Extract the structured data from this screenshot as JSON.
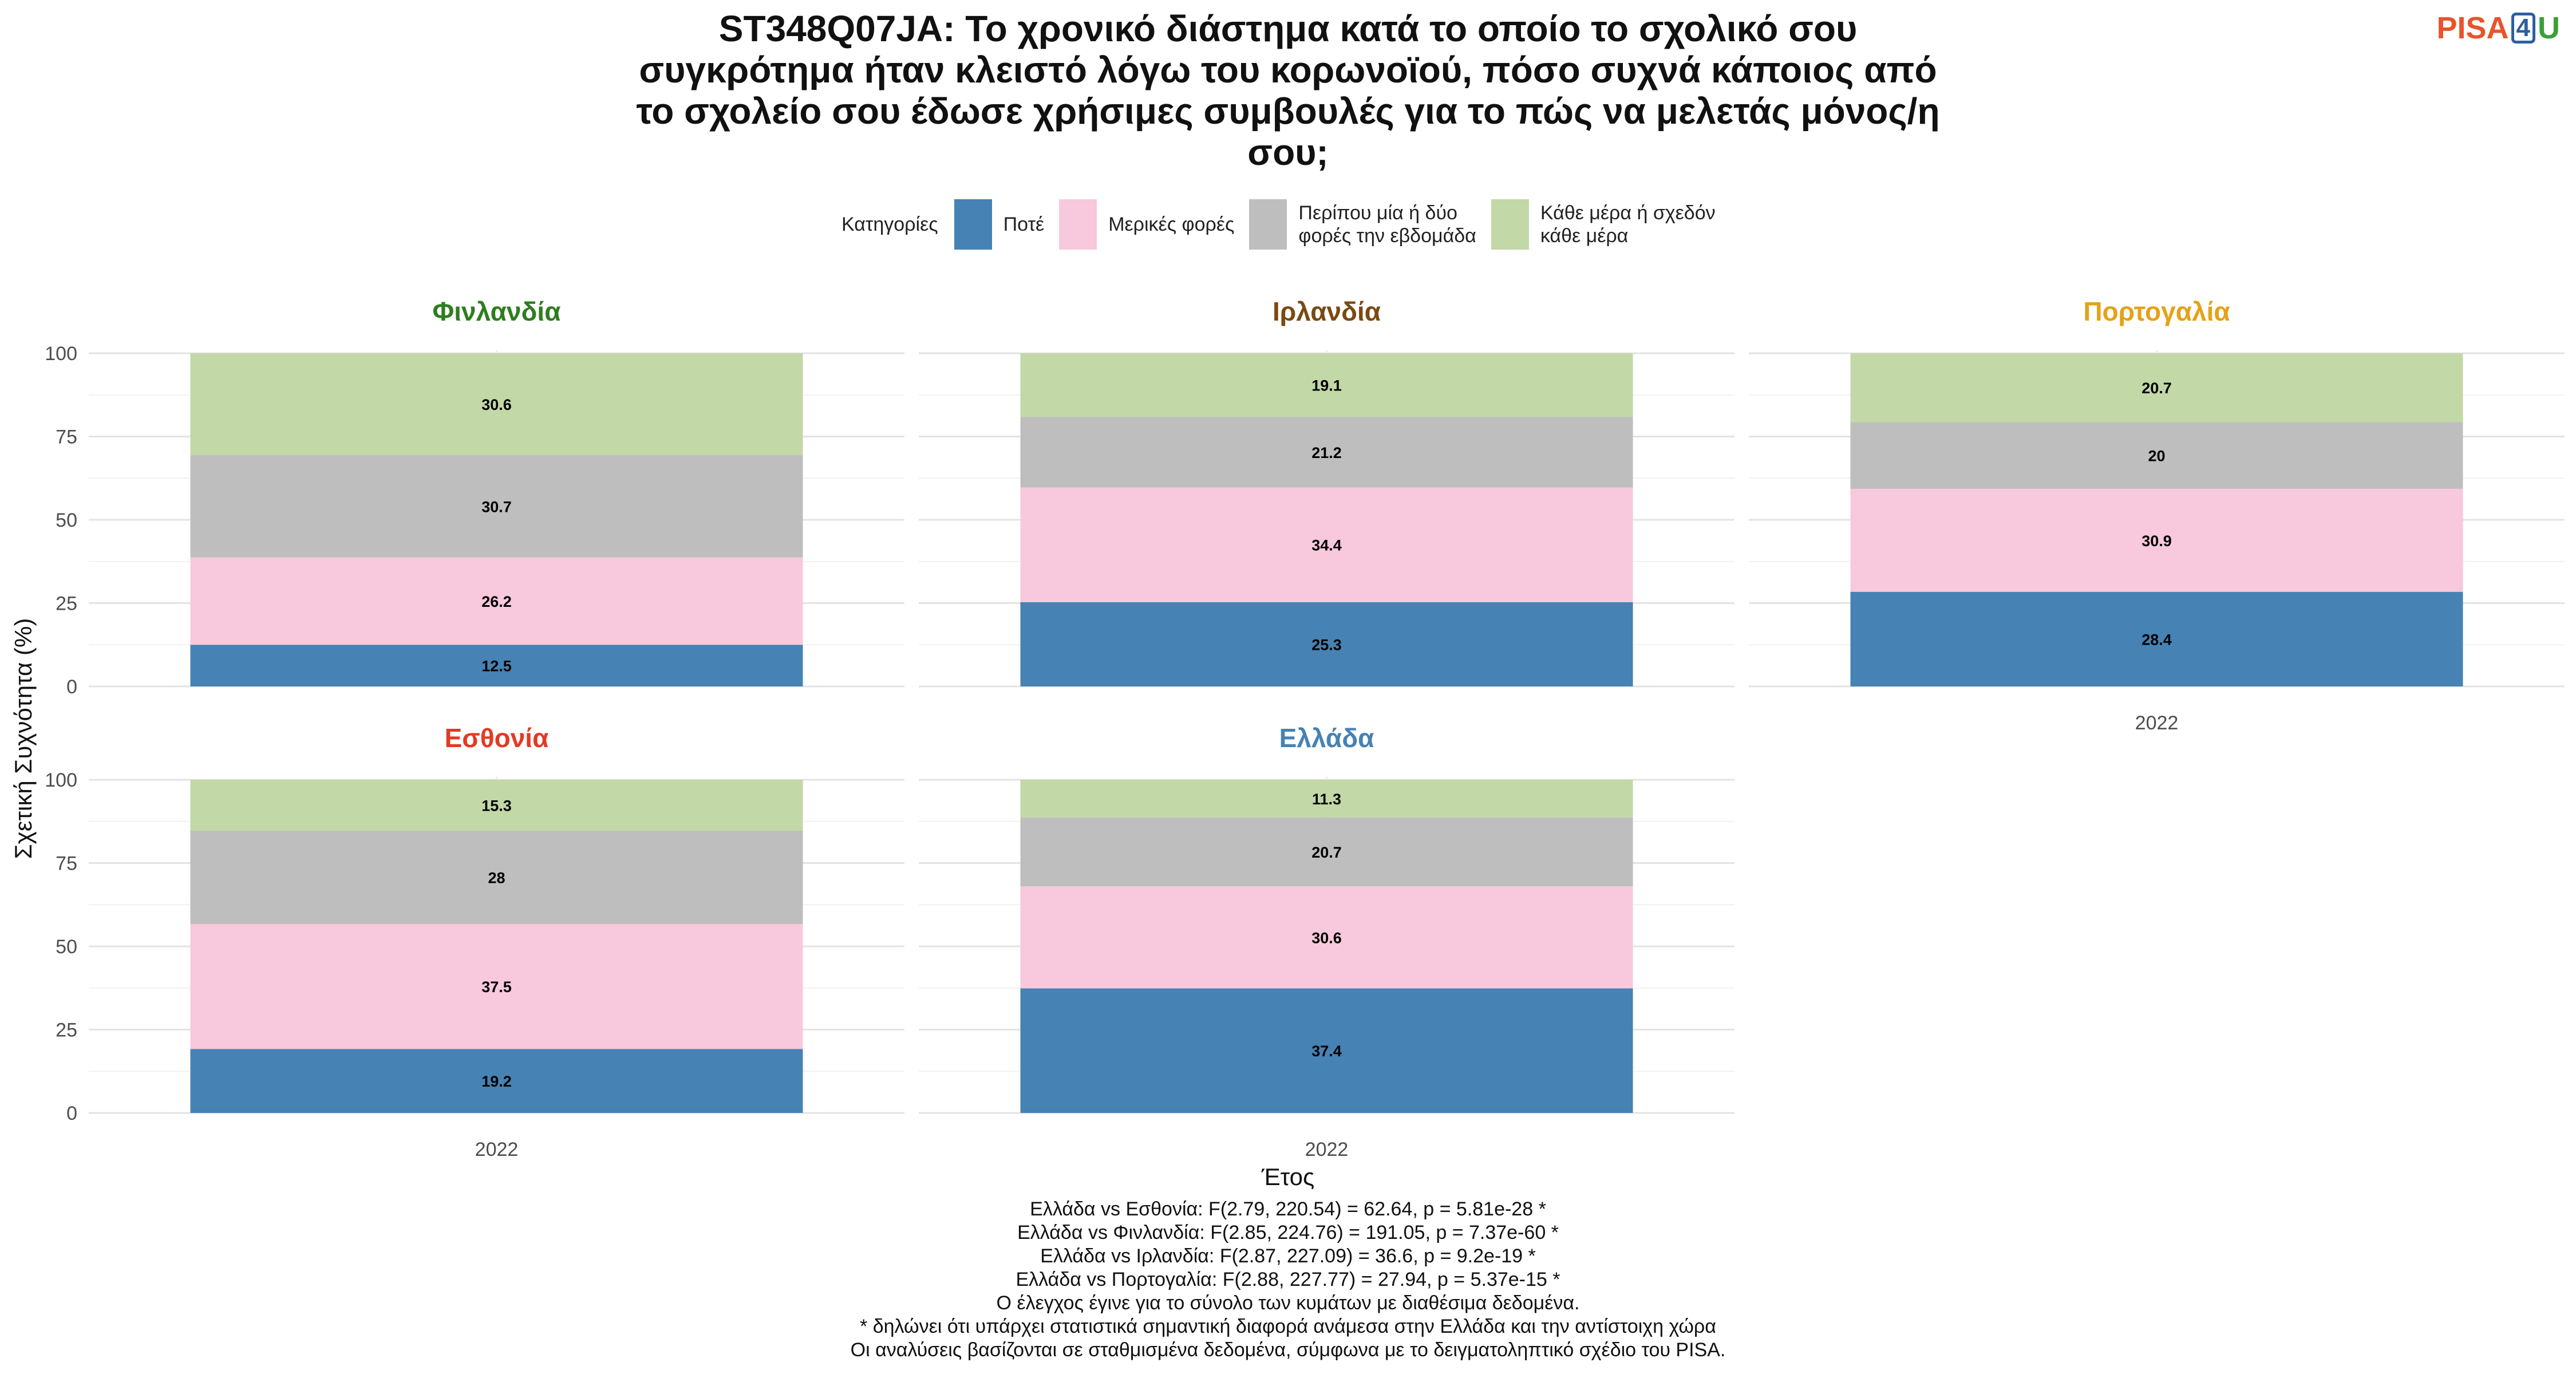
{
  "title": "ST348Q07JA: Το χρονικό διάστημα κατά το οποίο το σχολικό σου συγκρότημα ήταν κλειστό λόγω του κορωνοϊού, πόσο συχνά κάποιος από το σχολείο σου έδωσε χρήσιμες συμβουλές για το πώς να μελετάς μόνος/η σου;",
  "title_lines": [
    "ST348Q07JA: Το χρονικό διάστημα κατά το οποίο το σχολικό σου",
    "συγκρότημα ήταν κλειστό λόγω του κορωνοϊού, πόσο συχνά κάποιος από",
    "το σχολείο σου έδωσε χρήσιμες συμβουλές για το πώς να μελετάς μόνος/η",
    "σου;"
  ],
  "logo": {
    "part1": "PISA",
    "part2": "4",
    "part3": "U"
  },
  "legend": {
    "title": "Κατηγορίες",
    "items": [
      {
        "label_lines": [
          "Ποτέ"
        ],
        "color": "#4682b4"
      },
      {
        "label_lines": [
          "Μερικές φορές"
        ],
        "color": "#f8c8dc"
      },
      {
        "label_lines": [
          "Περίπου μία ή δύο",
          "φορές την εβδομάδα"
        ],
        "color": "#bebebe"
      },
      {
        "label_lines": [
          "Κάθε μέρα ή σχεδόν",
          "κάθε μέρα"
        ],
        "color": "#c2d8a6"
      }
    ]
  },
  "notes": [
    "Ελλάδα vs Εσθονία: F(2.79, 220.54) = 62.64, p = 5.81e-28 *",
    "Ελλάδα vs Φινλανδία: F(2.85, 224.76) = 191.05, p = 7.37e-60 *",
    "Ελλάδα vs Ιρλανδία: F(2.87, 227.09) = 36.6, p = 9.2e-19 *",
    "Ελλάδα vs Πορτογαλία: F(2.88, 227.77) = 27.94, p = 5.37e-15 *",
    "Ο έλεγχος έγινε για το σύνολο των κυμάτων με διαθέσιμα δεδομένα.",
    "* δηλώνει ότι υπάρχει στατιστικά σημαντική διαφορά ανάμεσα στην Ελλάδα και την αντίστοιχη χώρα",
    "Οι αναλύσεις βασίζονται σε σταθμισμένα δεδομένα, σύμφωνα με το δειγματοληπτικό σχέδιο του PISA."
  ],
  "chart_data": {
    "type": "bar",
    "stacked": true,
    "xlabel": "Έτος",
    "ylabel": "Σχετική Συχνότητα (%)",
    "ylim": [
      0,
      100
    ],
    "yticks": [
      0,
      25,
      50,
      75,
      100
    ],
    "grid": true,
    "legend_position": "top",
    "categories": [
      "2022"
    ],
    "series_names": [
      "Ποτέ",
      "Μερικές φορές",
      "Περίπου μία ή δύο φορές την εβδομάδα",
      "Κάθε μέρα ή σχεδόν κάθε μέρα"
    ],
    "series_colors": [
      "#4682b4",
      "#f8c8dc",
      "#bebebe",
      "#c2d8a6"
    ],
    "panels": [
      {
        "title": "Φινλανδία",
        "title_color": "#2e7d1e",
        "year": "2022",
        "values": [
          12.5,
          26.2,
          30.7,
          30.6
        ]
      },
      {
        "title": "Ιρλανδία",
        "title_color": "#7a4a12",
        "year": "2022",
        "values": [
          25.3,
          34.4,
          21.2,
          19.1
        ]
      },
      {
        "title": "Πορτογαλία",
        "title_color": "#e6a117",
        "year": "2022",
        "values": [
          28.4,
          30.9,
          20,
          20.7
        ]
      },
      {
        "title": "Εσθονία",
        "title_color": "#e23a24",
        "year": "2022",
        "values": [
          19.2,
          37.5,
          28,
          15.3
        ]
      },
      {
        "title": "Ελλάδα",
        "title_color": "#4682b4",
        "year": "2022",
        "values": [
          37.4,
          30.6,
          20.7,
          11.3
        ]
      }
    ]
  }
}
